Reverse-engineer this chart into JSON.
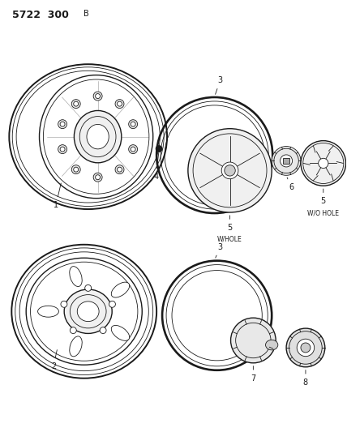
{
  "title1": "5722  300",
  "title2": "B",
  "background_color": "#ffffff",
  "line_color": "#1a1a1a",
  "figsize": [
    4.28,
    5.33
  ],
  "dpi": 100,
  "lw_thin": 0.6,
  "lw_med": 1.0,
  "lw_thick": 1.4,
  "label_fs": 7,
  "sub_fs": 5.5
}
